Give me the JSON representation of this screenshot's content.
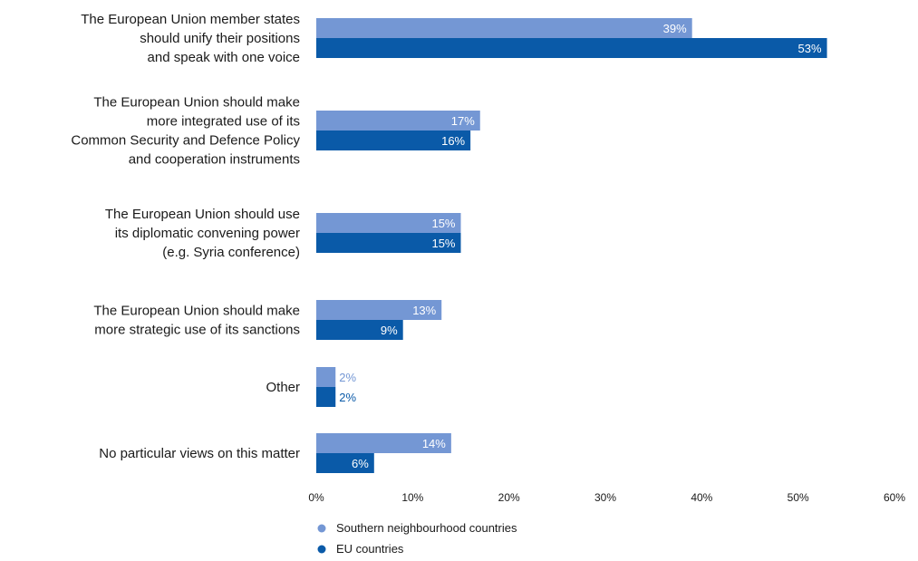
{
  "chart_data": {
    "type": "bar",
    "orientation": "horizontal",
    "categories": [
      [
        "The European Union member states",
        "should unify their positions",
        "and speak with one voice"
      ],
      [
        "The European Union should make",
        "more integrated use of its",
        "Common Security and Defence Policy",
        "and cooperation instruments"
      ],
      [
        "The European Union should use",
        "its diplomatic convening power",
        "(e.g. Syria conference)"
      ],
      [
        "The European Union should make",
        "more strategic use of its sanctions"
      ],
      [
        "Other"
      ],
      [
        "No particular views on this matter"
      ]
    ],
    "series": [
      {
        "name": "Southern neighbourhood countries",
        "color": "#7497d4",
        "values": [
          39,
          17,
          15,
          13,
          2,
          14
        ],
        "labels": [
          "39%",
          "17%",
          "15%",
          "13%",
          "2%",
          "14%"
        ]
      },
      {
        "name": "EU countries",
        "color": "#0a5aa8",
        "values": [
          53,
          16,
          15,
          9,
          2,
          6
        ],
        "labels": [
          "53%",
          "16%",
          "15%",
          "9%",
          "2%",
          "6%"
        ]
      }
    ],
    "xlim": [
      0,
      60
    ],
    "xticks": [
      "0%",
      "10%",
      "20%",
      "30%",
      "40%",
      "50%",
      "60%"
    ],
    "grid": false,
    "legend_position": "bottom-left"
  }
}
